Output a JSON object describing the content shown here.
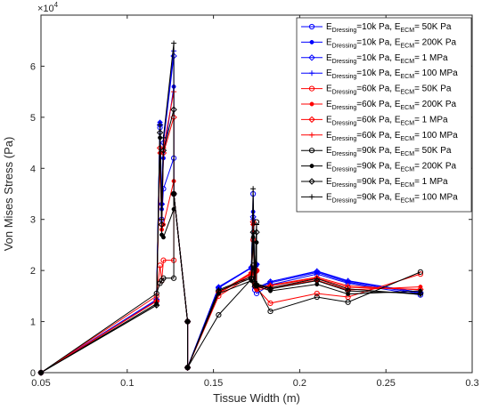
{
  "chart_data": {
    "type": "line",
    "xlabel": "Tissue Width (m)",
    "ylabel": "Von Mises Stress (Pa)",
    "exponent_label": "×10",
    "exponent_power": "4",
    "xlim": [
      0.05,
      0.3
    ],
    "ylim": [
      0,
      7
    ],
    "xticks": [
      "0.05",
      "0.1",
      "0.15",
      "0.2",
      "0.25",
      "0.3"
    ],
    "yticks": [
      "0",
      "1",
      "2",
      "3",
      "4",
      "5",
      "6"
    ],
    "grid": false,
    "legend_position": "top-right",
    "x": [
      0.05,
      0.117,
      0.119,
      0.12,
      0.121,
      0.127,
      0.127,
      0.135,
      0.135,
      0.153,
      0.172,
      0.173,
      0.174,
      0.175,
      0.175,
      0.183,
      0.21,
      0.228,
      0.27
    ],
    "series": [
      {
        "name_main": "E",
        "name_sub1": "Dressing",
        "name_mid": "=10k Pa, E",
        "name_sub2": "ECM",
        "name_end": "= 50K Pa",
        "color": "#0000ff",
        "marker": "circle",
        "values": [
          0,
          1.4,
          4.8,
          3.0,
          3.6,
          4.2,
          3.5,
          1.0,
          0.1,
          1.66,
          2.05,
          3.5,
          1.62,
          2.0,
          1.55,
          1.72,
          1.93,
          1.75,
          1.52
        ]
      },
      {
        "name_main": "E",
        "name_sub1": "Dressing",
        "name_mid": "=10k Pa, E",
        "name_sub2": "ECM",
        "name_end": "= 200K Pa",
        "color": "#0000ff",
        "marker": "dot",
        "values": [
          0,
          1.42,
          4.9,
          3.2,
          4.2,
          5.6,
          3.5,
          1.0,
          0.1,
          1.66,
          2.06,
          3.15,
          1.67,
          2.1,
          1.63,
          1.76,
          1.96,
          1.77,
          1.55
        ]
      },
      {
        "name_main": "E",
        "name_sub1": "Dressing",
        "name_mid": "=10k Pa, E",
        "name_sub2": "ECM",
        "name_end": "= 1 MPa",
        "color": "#0000ff",
        "marker": "diamond",
        "values": [
          0,
          1.43,
          4.85,
          3.3,
          4.5,
          6.2,
          3.5,
          1.0,
          0.1,
          1.67,
          2.06,
          3.05,
          1.68,
          2.12,
          1.66,
          1.78,
          1.98,
          1.79,
          1.57
        ]
      },
      {
        "name_main": "E",
        "name_sub1": "Dressing",
        "name_mid": "=10k Pa, E",
        "name_sub2": "ECM",
        "name_end": "= 100 MPa",
        "color": "#0000ff",
        "marker": "plus",
        "values": [
          0,
          1.43,
          4.9,
          3.3,
          4.6,
          6.3,
          3.5,
          1.0,
          0.1,
          1.68,
          2.06,
          3.0,
          1.69,
          2.13,
          1.66,
          1.78,
          1.99,
          1.8,
          1.57
        ]
      },
      {
        "name_main": "E",
        "name_sub1": "Dressing",
        "name_mid": "=60k Pa, E",
        "name_sub2": "ECM",
        "name_end": "= 50K Pa",
        "color": "#ff0000",
        "marker": "circle",
        "values": [
          0,
          1.5,
          2.1,
          1.8,
          2.2,
          2.2,
          3.5,
          1.0,
          0.1,
          1.5,
          1.9,
          2.6,
          1.7,
          2.0,
          1.65,
          1.36,
          1.55,
          1.48,
          1.93
        ]
      },
      {
        "name_main": "E",
        "name_sub1": "Dressing",
        "name_mid": "=60k Pa, E",
        "name_sub2": "ECM",
        "name_end": "= 200K Pa",
        "color": "#ff0000",
        "marker": "dot",
        "values": [
          0,
          1.4,
          4.3,
          2.8,
          2.9,
          3.75,
          3.5,
          1.0,
          0.1,
          1.55,
          1.93,
          2.9,
          1.71,
          1.98,
          1.62,
          1.66,
          1.81,
          1.62,
          1.68
        ]
      },
      {
        "name_main": "E",
        "name_sub1": "Dressing",
        "name_mid": "=60k Pa, E",
        "name_sub2": "ECM",
        "name_end": "= 1 MPa",
        "color": "#ff0000",
        "marker": "diamond",
        "values": [
          0,
          1.4,
          4.4,
          2.9,
          4.3,
          5.0,
          3.5,
          1.0,
          0.1,
          1.57,
          1.95,
          2.95,
          1.74,
          2.0,
          1.65,
          1.7,
          1.85,
          1.67,
          1.63
        ]
      },
      {
        "name_main": "E",
        "name_sub1": "Dressing",
        "name_mid": "=60k Pa, E",
        "name_sub2": "ECM",
        "name_end": "= 100 MPa",
        "color": "#ff0000",
        "marker": "plus",
        "values": [
          0,
          1.4,
          4.3,
          3.0,
          4.4,
          5.5,
          3.5,
          1.0,
          0.1,
          1.57,
          1.96,
          2.9,
          1.75,
          2.02,
          1.66,
          1.71,
          1.87,
          1.7,
          1.62
        ]
      },
      {
        "name_main": "E",
        "name_sub1": "Dressing",
        "name_mid": "=90k Pa, E",
        "name_sub2": "ECM",
        "name_end": "= 50K Pa",
        "color": "#000000",
        "marker": "circle",
        "values": [
          0,
          1.55,
          1.75,
          1.8,
          1.85,
          1.85,
          3.5,
          1.0,
          0.1,
          1.13,
          1.83,
          2.1,
          1.7,
          2.95,
          1.7,
          1.2,
          1.48,
          1.38,
          1.97
        ]
      },
      {
        "name_main": "E",
        "name_sub1": "Dressing",
        "name_mid": "=90k Pa, E",
        "name_sub2": "ECM",
        "name_end": "= 200K Pa",
        "color": "#000000",
        "marker": "dot",
        "values": [
          0,
          1.35,
          4.6,
          2.7,
          2.65,
          3.2,
          3.5,
          1.0,
          0.1,
          1.55,
          1.8,
          2.65,
          1.72,
          2.55,
          1.7,
          1.6,
          1.73,
          1.54,
          1.6
        ]
      },
      {
        "name_main": "E",
        "name_sub1": "Dressing",
        "name_mid": "=90k Pa, E",
        "name_sub2": "ECM",
        "name_end": "= 1 MPa",
        "color": "#000000",
        "marker": "diamond",
        "values": [
          0,
          1.32,
          4.7,
          2.9,
          4.35,
          5.15,
          3.5,
          1.0,
          0.1,
          1.6,
          1.85,
          2.75,
          1.75,
          2.75,
          1.72,
          1.64,
          1.8,
          1.6,
          1.55
        ]
      },
      {
        "name_main": "E",
        "name_sub1": "Dressing",
        "name_mid": "=90k Pa, E",
        "name_sub2": "ECM",
        "name_end": "= 100 MPa",
        "color": "#000000",
        "marker": "plus",
        "values": [
          0,
          1.32,
          4.85,
          3.0,
          4.6,
          6.45,
          3.5,
          1.0,
          0.1,
          1.62,
          1.88,
          3.6,
          1.78,
          2.9,
          1.74,
          1.66,
          1.84,
          1.64,
          1.53
        ]
      }
    ]
  }
}
